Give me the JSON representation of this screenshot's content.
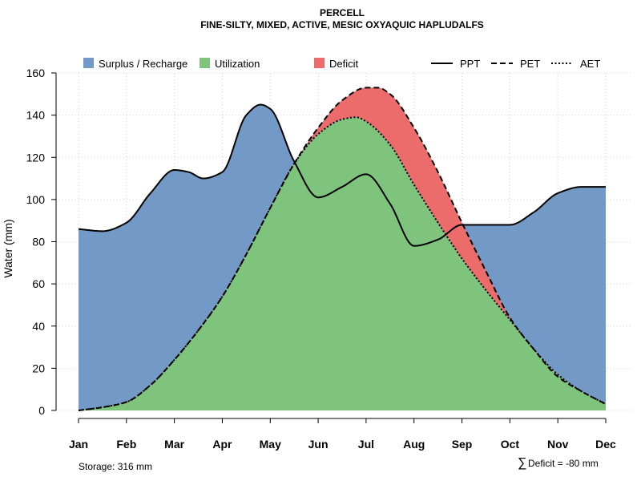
{
  "chart_data": {
    "type": "area",
    "title": "PERCELL",
    "subtitle": "FINE-SILTY, MIXED, ACTIVE, MESIC OXYAQUIC HAPLUDALFS",
    "ylabel": "Water (mm)",
    "xlabel": "",
    "ylim": [
      0,
      160
    ],
    "yticks": [
      "0",
      "20",
      "40",
      "60",
      "80",
      "100",
      "120",
      "140",
      "160"
    ],
    "categories": [
      "Jan",
      "Feb",
      "Mar",
      "Apr",
      "May",
      "Jun",
      "Jul",
      "Aug",
      "Sep",
      "Oct",
      "Nov",
      "Dec"
    ],
    "series": [
      {
        "name": "PPT",
        "style": "solid",
        "x": [
          1,
          1.5,
          2,
          2.5,
          3,
          3.3,
          3.6,
          4,
          4.5,
          4.8,
          5,
          5.5,
          6,
          6.5,
          7,
          7.5,
          8,
          8.5,
          9,
          9.5,
          10,
          10.5,
          11,
          11.5,
          12
        ],
        "values": [
          86,
          85,
          89,
          103,
          114,
          113,
          110,
          113,
          140,
          145,
          143,
          118,
          101,
          106,
          112,
          98,
          78,
          81,
          88,
          88,
          88,
          94,
          103,
          106,
          106
        ]
      },
      {
        "name": "PET",
        "style": "dashed",
        "x": [
          1,
          1.5,
          2,
          2.5,
          3,
          3.5,
          4,
          4.5,
          5,
          5.5,
          6,
          6.5,
          7,
          7.25,
          7.5,
          8,
          8.5,
          9,
          9.5,
          10,
          10.5,
          11,
          11.5,
          12
        ],
        "values": [
          0,
          1.5,
          4,
          12,
          24,
          38,
          54,
          74,
          96,
          117,
          134,
          147,
          153,
          153,
          150,
          134,
          113,
          89,
          66,
          44,
          29,
          16,
          9,
          3
        ]
      },
      {
        "name": "AET",
        "style": "dotted",
        "x": [
          1,
          1.5,
          2,
          2.5,
          3,
          3.5,
          4,
          4.5,
          5,
          5.5,
          6,
          6.5,
          6.8,
          7,
          7.5,
          8,
          8.5,
          9,
          9.5,
          10,
          10.5,
          11,
          11.5,
          12
        ],
        "values": [
          0,
          1.5,
          4,
          12,
          24,
          38,
          54,
          74,
          96,
          117,
          131,
          138,
          139,
          137,
          126,
          107,
          89,
          72,
          57,
          43,
          29,
          17,
          9,
          3
        ]
      }
    ],
    "areas": [
      {
        "name": "Surplus / Recharge",
        "color": "#7399c6"
      },
      {
        "name": "Utilization",
        "color": "#7fc47d"
      },
      {
        "name": "Deficit",
        "color": "#ec6b6b"
      }
    ],
    "legend": [
      "Surplus / Recharge",
      "Utilization",
      "Deficit",
      "PPT",
      "PET",
      "AET"
    ],
    "storage_note": "Storage: 316 mm",
    "deficit_symbol": "∑",
    "deficit_note": "Deficit = -80 mm",
    "grid": true
  }
}
